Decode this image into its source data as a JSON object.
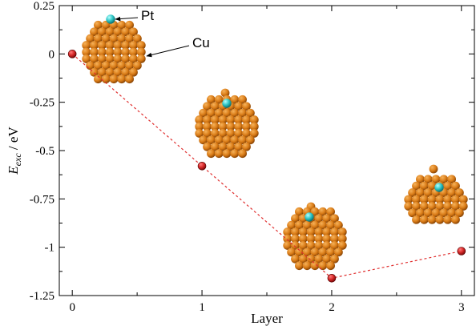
{
  "chart_data": {
    "type": "scatter",
    "x": [
      0,
      1,
      2,
      3
    ],
    "y": [
      0,
      -0.58,
      -1.16,
      -1.02
    ],
    "point_color": "#d62828",
    "line_color": "#e03030",
    "line_style": "dashed",
    "xlabel": "Layer",
    "ylabel_main": "E",
    "ylabel_sub": "exc",
    "ylabel_unit": " / eV",
    "xlim": [
      -0.1,
      3.1
    ],
    "ylim": [
      -1.25,
      0.25
    ],
    "xticks": [
      "0",
      "1",
      "2",
      "3"
    ],
    "yticks": [
      "0.25",
      "0",
      "-0.25",
      "-0.5",
      "-0.75",
      "-1",
      "-1.25"
    ],
    "grid": false,
    "annotations": [
      "Pt",
      "Cu"
    ],
    "cluster_colors": {
      "cu": "#d97b16",
      "pt": "#2ec4c4"
    },
    "clusters": [
      {
        "layer": "0",
        "pt_site": "top layer"
      },
      {
        "layer": "1",
        "pt_site": "layer 1"
      },
      {
        "layer": "2",
        "pt_site": "layer 2"
      },
      {
        "layer": "3",
        "pt_site": "layer 3"
      }
    ]
  }
}
